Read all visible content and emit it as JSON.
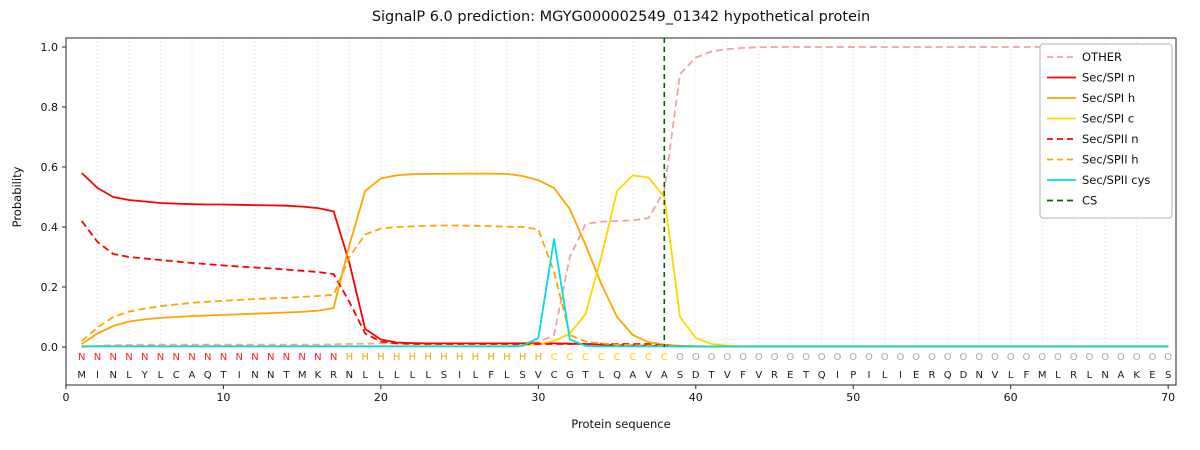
{
  "chart_data": {
    "type": "line",
    "title": "SignalP 6.0 prediction: MGYG000002549_01342 hypothetical protein",
    "xlabel": "Protein sequence",
    "ylabel": "Probability",
    "x_start": 1,
    "xlim": [
      0,
      70.5
    ],
    "ylim": [
      0,
      1.04
    ],
    "x_ticks": [
      0,
      10,
      20,
      30,
      40,
      50,
      60,
      70
    ],
    "y_ticks": [
      "0.0",
      "0.2",
      "0.4",
      "0.6",
      "0.8",
      "1.0"
    ],
    "grid": "vertical-dotted-every-2",
    "legend_position": "upper right",
    "cs_position": 38,
    "sequence": "MINLYLCAQTINNTMKRNLLLLLSILFLSVCGTLQAVASDTVFVRETQIPILIERQDNVLFMLRLNAKES",
    "region_labels": "NNNNNNNNNNNNNNNNNHHHHHHHHHHHHHCCCCCCCCOOOOOOOOOOOOOOOOOOOOOOOOOOOOOOOO",
    "region_colors": {
      "N": "#ff2020",
      "H": "#ffa500",
      "C": "#ffd700",
      "O": "#a8a8a8"
    },
    "sequence_color": "#1a1a1a",
    "series": [
      {
        "name": "OTHER",
        "color": "#f4a1a1",
        "style": "dashed",
        "values": [
          0,
          0.004,
          0.006,
          0.007,
          0.008,
          0.008,
          0.008,
          0.008,
          0.008,
          0.008,
          0.008,
          0.008,
          0.008,
          0.008,
          0.008,
          0.008,
          0.009,
          0.01,
          0.011,
          0.012,
          0.012,
          0.012,
          0.012,
          0.012,
          0.012,
          0.012,
          0.012,
          0.012,
          0.013,
          0.016,
          0.04,
          0.3,
          0.41,
          0.418,
          0.42,
          0.422,
          0.43,
          0.52,
          0.91,
          0.965,
          0.985,
          0.993,
          0.997,
          0.999,
          1,
          1,
          1,
          1,
          1,
          1,
          1,
          1,
          1,
          1,
          1,
          1,
          1,
          1,
          1,
          1,
          1,
          1,
          1,
          1,
          1,
          1,
          1,
          1,
          1,
          1
        ]
      },
      {
        "name": "Sec/SPI n",
        "color": "#ff0000",
        "style": "solid",
        "values": [
          0.58,
          0.53,
          0.5,
          0.49,
          0.485,
          0.48,
          0.478,
          0.476,
          0.475,
          0.475,
          0.474,
          0.473,
          0.472,
          0.471,
          0.468,
          0.463,
          0.452,
          0.28,
          0.06,
          0.025,
          0.015,
          0.013,
          0.012,
          0.012,
          0.012,
          0.012,
          0.012,
          0.012,
          0.012,
          0.012,
          0.012,
          0.011,
          0.01,
          0.008,
          0.006,
          0.005,
          0.004,
          0.003,
          0.002,
          0.002,
          0.002,
          0.002,
          0.002,
          0.002,
          0.002,
          0.002,
          0.002,
          0.002,
          0.002,
          0.002,
          0.002,
          0.002,
          0.002,
          0.002,
          0.002,
          0.002,
          0.002,
          0.002,
          0.002,
          0.002,
          0.002,
          0.002,
          0.002,
          0.002,
          0.002,
          0.002,
          0.002,
          0.002,
          0.002,
          0.002
        ]
      },
      {
        "name": "Sec/SPI h",
        "color": "#ffa500",
        "style": "solid",
        "values": [
          0.01,
          0.045,
          0.07,
          0.085,
          0.092,
          0.097,
          0.1,
          0.103,
          0.105,
          0.107,
          0.109,
          0.111,
          0.113,
          0.115,
          0.117,
          0.121,
          0.13,
          0.34,
          0.52,
          0.562,
          0.572,
          0.576,
          0.577,
          0.577,
          0.578,
          0.578,
          0.578,
          0.577,
          0.57,
          0.556,
          0.53,
          0.46,
          0.34,
          0.21,
          0.1,
          0.04,
          0.016,
          0.008,
          0.004,
          0.003,
          0.002,
          0.002,
          0.002,
          0.002,
          0.002,
          0.002,
          0.002,
          0.002,
          0.002,
          0.002,
          0.002,
          0.002,
          0.002,
          0.002,
          0.002,
          0.002,
          0.002,
          0.002,
          0.002,
          0.002,
          0.002,
          0.002,
          0.002,
          0.002,
          0.002,
          0.002,
          0.002,
          0.002,
          0.002,
          0.002
        ]
      },
      {
        "name": "Sec/SPI c",
        "color": "#ffd700",
        "style": "solid",
        "values": [
          0.003,
          0.003,
          0.003,
          0.003,
          0.003,
          0.003,
          0.003,
          0.003,
          0.003,
          0.003,
          0.003,
          0.003,
          0.003,
          0.003,
          0.003,
          0.003,
          0.003,
          0.003,
          0.003,
          0.003,
          0.003,
          0.003,
          0.003,
          0.003,
          0.003,
          0.003,
          0.003,
          0.003,
          0.005,
          0.01,
          0.02,
          0.045,
          0.11,
          0.3,
          0.52,
          0.572,
          0.565,
          0.5,
          0.1,
          0.03,
          0.01,
          0.005,
          0.003,
          0.003,
          0.003,
          0.003,
          0.003,
          0.003,
          0.003,
          0.003,
          0.003,
          0.003,
          0.003,
          0.003,
          0.003,
          0.003,
          0.003,
          0.003,
          0.003,
          0.003,
          0.003,
          0.003,
          0.003,
          0.003,
          0.003,
          0.003,
          0.003,
          0.003,
          0.003,
          0.003
        ]
      },
      {
        "name": "Sec/SPII n",
        "color": "#ff0000",
        "style": "dashed",
        "values": [
          0.42,
          0.35,
          0.31,
          0.3,
          0.295,
          0.29,
          0.285,
          0.28,
          0.276,
          0.272,
          0.268,
          0.265,
          0.262,
          0.258,
          0.254,
          0.25,
          0.243,
          0.15,
          0.045,
          0.018,
          0.012,
          0.01,
          0.01,
          0.01,
          0.01,
          0.01,
          0.01,
          0.01,
          0.01,
          0.01,
          0.01,
          0.01,
          0.01,
          0.01,
          0.01,
          0.01,
          0.01,
          0.005,
          0.003,
          0.002,
          0.002,
          0.002,
          0.002,
          0.002,
          0.002,
          0.002,
          0.002,
          0.002,
          0.002,
          0.002,
          0.002,
          0.002,
          0.002,
          0.002,
          0.002,
          0.002,
          0.002,
          0.002,
          0.002,
          0.002,
          0.002,
          0.002,
          0.002,
          0.002,
          0.002,
          0.002,
          0.002,
          0.002,
          0.002,
          0.002
        ]
      },
      {
        "name": "Sec/SPII h",
        "color": "#ffa500",
        "style": "dashed",
        "values": [
          0.02,
          0.065,
          0.1,
          0.118,
          0.128,
          0.136,
          0.142,
          0.147,
          0.151,
          0.154,
          0.157,
          0.16,
          0.162,
          0.164,
          0.167,
          0.17,
          0.174,
          0.3,
          0.375,
          0.395,
          0.4,
          0.402,
          0.404,
          0.405,
          0.405,
          0.404,
          0.403,
          0.401,
          0.4,
          0.392,
          0.25,
          0.04,
          0.018,
          0.012,
          0.008,
          0.006,
          0.005,
          0.004,
          0.003,
          0.002,
          0.002,
          0.002,
          0.002,
          0.002,
          0.002,
          0.002,
          0.002,
          0.002,
          0.002,
          0.002,
          0.002,
          0.002,
          0.002,
          0.002,
          0.002,
          0.002,
          0.002,
          0.002,
          0.002,
          0.002,
          0.002,
          0.002,
          0.002,
          0.002,
          0.002,
          0.002,
          0.002,
          0.002,
          0.002,
          0.002
        ]
      },
      {
        "name": "Sec/SPII cys",
        "color": "#00dddd",
        "style": "solid",
        "values": [
          0.002,
          0.002,
          0.002,
          0.002,
          0.002,
          0.002,
          0.002,
          0.002,
          0.002,
          0.002,
          0.002,
          0.002,
          0.002,
          0.002,
          0.002,
          0.002,
          0.002,
          0.002,
          0.002,
          0.002,
          0.002,
          0.002,
          0.002,
          0.002,
          0.002,
          0.002,
          0.002,
          0.002,
          0.004,
          0.03,
          0.36,
          0.025,
          0.004,
          0.002,
          0.002,
          0.002,
          0.002,
          0.002,
          0.002,
          0.002,
          0.002,
          0.002,
          0.002,
          0.002,
          0.002,
          0.002,
          0.002,
          0.002,
          0.002,
          0.002,
          0.002,
          0.002,
          0.002,
          0.002,
          0.002,
          0.002,
          0.002,
          0.002,
          0.002,
          0.002,
          0.002,
          0.002,
          0.002,
          0.002,
          0.002,
          0.002,
          0.002,
          0.002,
          0.002,
          0.002
        ]
      },
      {
        "name": "CS",
        "color": "#006400",
        "style": "dashed",
        "type": "vline",
        "x": 38
      }
    ]
  }
}
